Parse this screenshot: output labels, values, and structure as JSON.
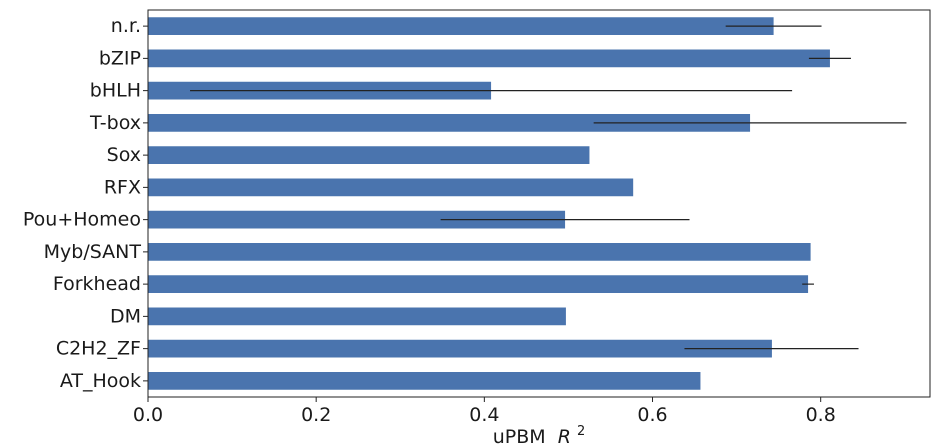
{
  "chart_data": {
    "type": "bar",
    "orientation": "horizontal",
    "title": "",
    "xlabel": "uPBM",
    "xlabel_math": "R",
    "xlabel_sup": "2",
    "ylabel": "",
    "xlim": [
      0.0,
      0.93
    ],
    "xticks": [
      0.0,
      0.2,
      0.4,
      0.6,
      0.8
    ],
    "xtick_labels": [
      "0.0",
      "0.2",
      "0.4",
      "0.6",
      "0.8"
    ],
    "categories": [
      "n.r.",
      "bZIP",
      "bHLH",
      "T-box",
      "Sox",
      "RFX",
      "Pou+Homeo",
      "Myb/SANT",
      "Forkhead",
      "DM",
      "C2H2_ZF",
      "AT_Hook"
    ],
    "values": [
      0.744,
      0.811,
      0.408,
      0.716,
      0.525,
      0.577,
      0.496,
      0.788,
      0.785,
      0.497,
      0.742,
      0.657
    ],
    "error_low": [
      0.687,
      0.786,
      0.05,
      0.53,
      null,
      null,
      0.348,
      null,
      0.778,
      null,
      0.638,
      null
    ],
    "error_high": [
      0.801,
      0.836,
      0.766,
      0.902,
      null,
      null,
      0.644,
      null,
      0.792,
      null,
      0.845,
      null
    ],
    "bar_color": "#4a74ae",
    "error_color": "#222222",
    "grid": false,
    "legend": "none"
  }
}
